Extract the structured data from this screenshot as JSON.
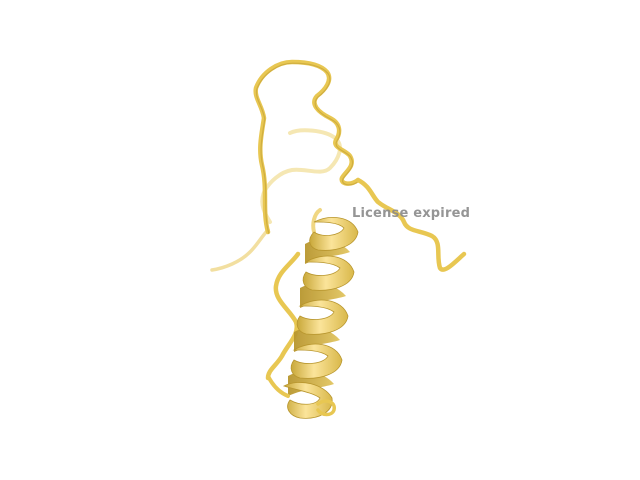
{
  "viewer": {
    "background_color": "#ffffff",
    "ribbon_color": "#f2d46a",
    "ribbon_shadow_color": "#c9a83a",
    "ribbon_highlight_color": "#fbeaa8",
    "representation": "cartoon",
    "watermark": {
      "text": "License expired",
      "color": "#8a8a8a"
    }
  }
}
